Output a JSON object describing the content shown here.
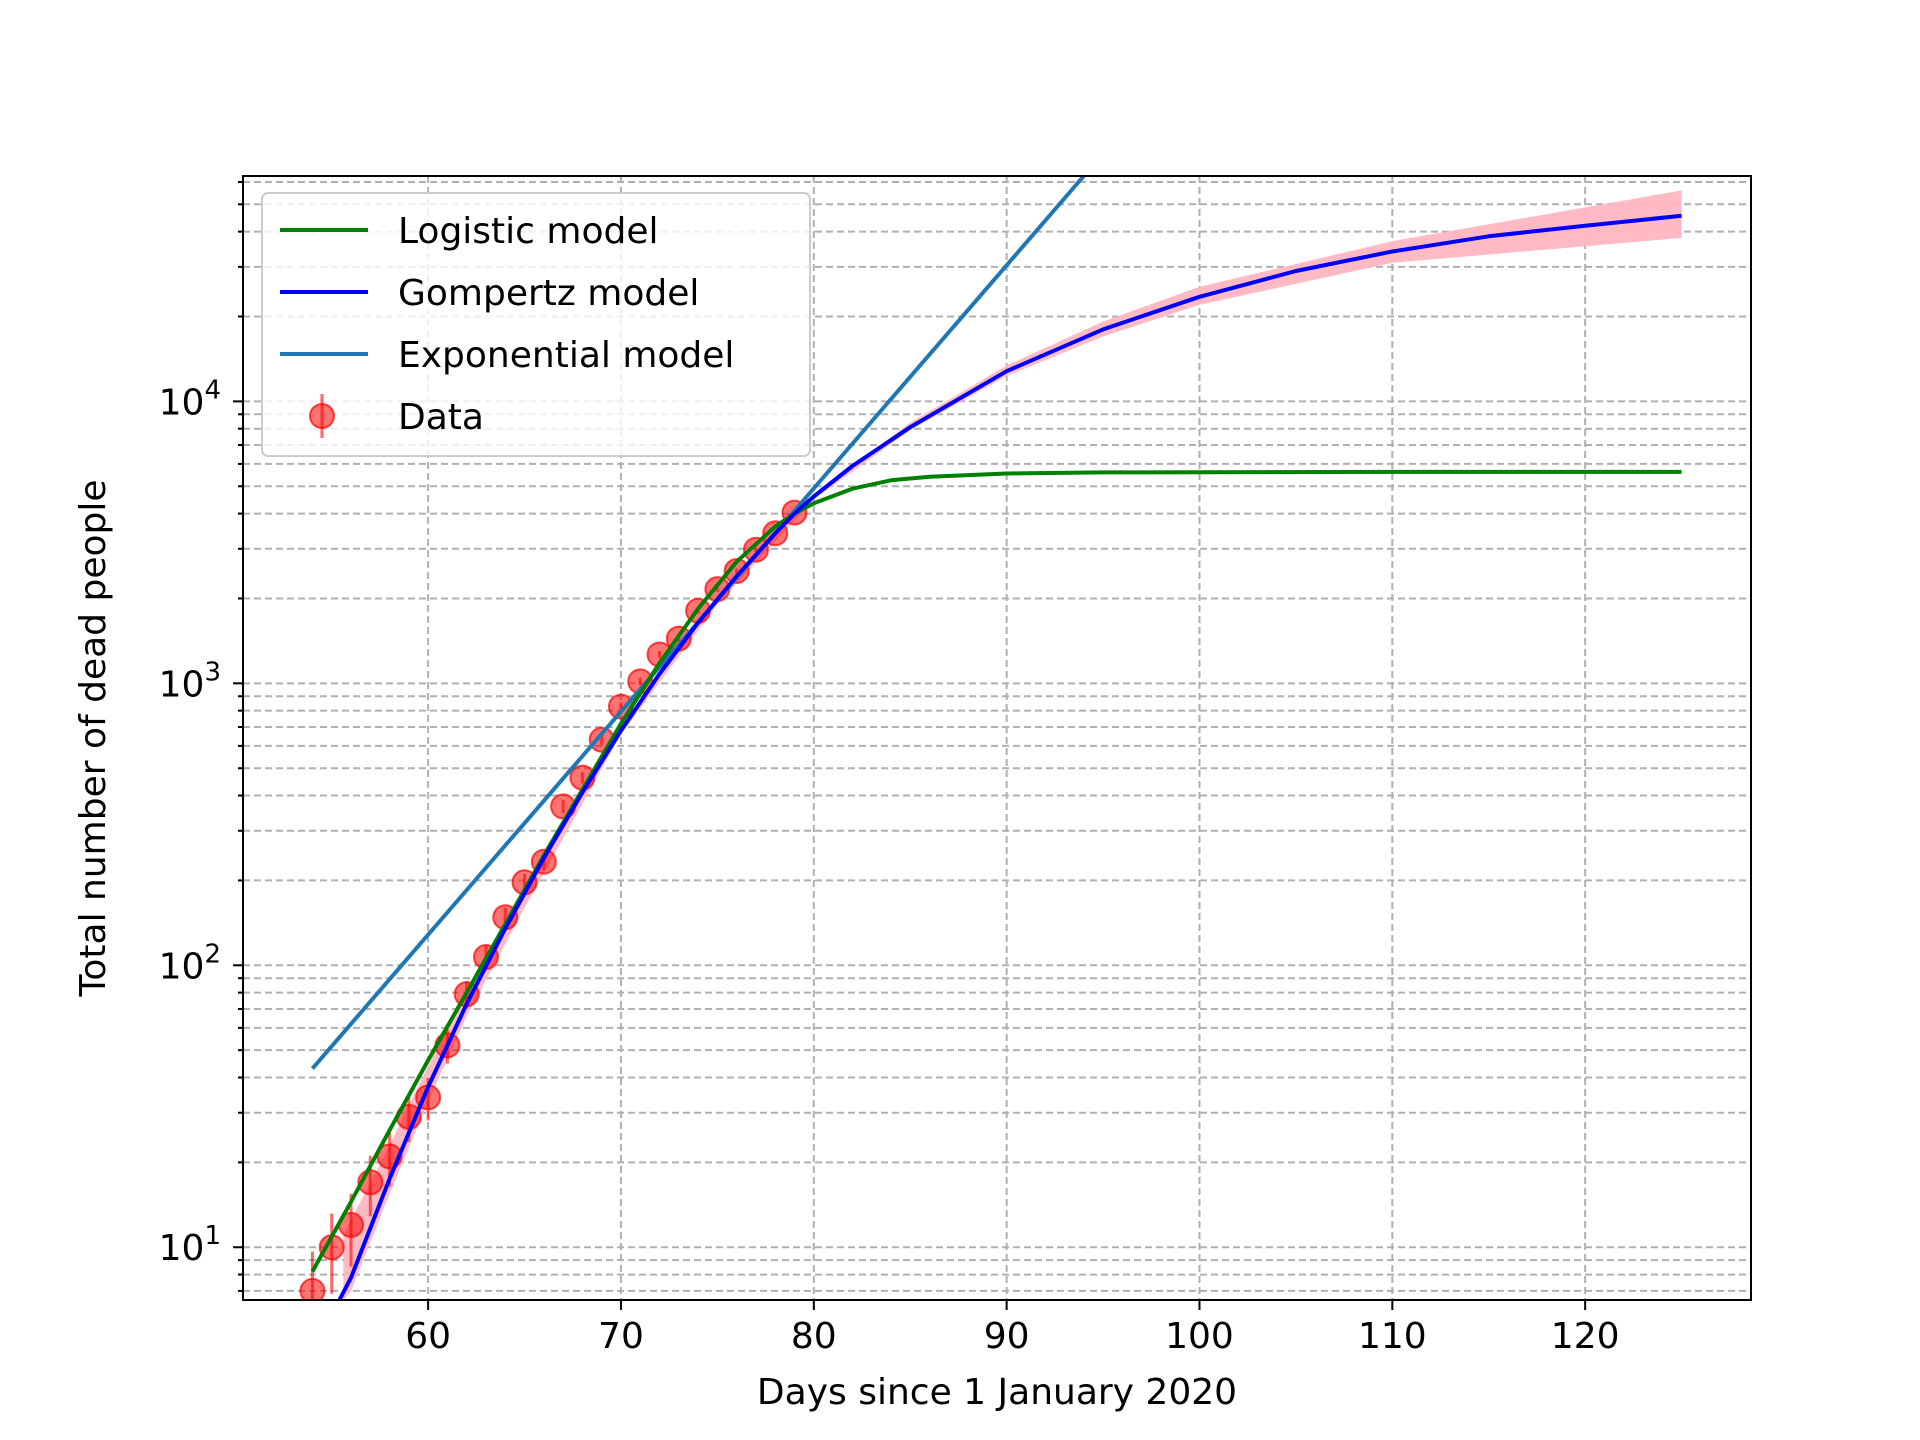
{
  "chart_data": {
    "type": "line",
    "title": "",
    "xlabel": "Days since 1 January 2020",
    "ylabel": "Total number of dead people",
    "xlim": [
      50.4,
      128.6
    ],
    "ylim": [
      6.5,
      63000
    ],
    "yscale": "log",
    "grid": "on, dashed, major and minor",
    "legend_placement": "top-left",
    "x_ticks": [
      60,
      70,
      80,
      90,
      100,
      110,
      120
    ],
    "y_ticks": [
      {
        "value": 10,
        "base": "10",
        "exp": "1"
      },
      {
        "value": 100,
        "base": "10",
        "exp": "2"
      },
      {
        "value": 1000,
        "base": "10",
        "exp": "3"
      },
      {
        "value": 10000,
        "base": "10",
        "exp": "4"
      }
    ],
    "colors": {
      "logistic": "#008000",
      "gompertz": "#0000ff",
      "exponential": "#1f77b4",
      "data": "#ff0000",
      "band": "#ffb6c1"
    },
    "series": [
      {
        "name": "Logistic model",
        "key": "logistic",
        "x": [
          54,
          56,
          58,
          60,
          62,
          64,
          66,
          68,
          70,
          72,
          74,
          76,
          78,
          79,
          80,
          82,
          84,
          86,
          90,
          95,
          100,
          110,
          125
        ],
        "y": [
          8.2,
          14.5,
          26,
          46,
          80,
          140,
          245,
          420,
          720,
          1180,
          1840,
          2700,
          3600,
          4000,
          4350,
          4900,
          5250,
          5400,
          5550,
          5600,
          5610,
          5620,
          5620
        ]
      },
      {
        "name": "Gompertz model",
        "key": "gompertz",
        "x": [
          55.4,
          56,
          58,
          60,
          62,
          64,
          66,
          68,
          70,
          72,
          74,
          76,
          78,
          79,
          80,
          82,
          85,
          90,
          95,
          100,
          105,
          110,
          115,
          120,
          125
        ],
        "y": [
          6.5,
          7.8,
          17.5,
          37,
          73,
          135,
          240,
          410,
          680,
          1080,
          1640,
          2400,
          3400,
          4000,
          4600,
          5900,
          8100,
          12800,
          18000,
          23500,
          29000,
          34000,
          38500,
          42000,
          45500
        ]
      },
      {
        "name": "Exponential model",
        "key": "exponential",
        "x": [
          54,
          94
        ],
        "y": [
          43,
          63000
        ]
      },
      {
        "name": "Data",
        "key": "data",
        "x": [
          54,
          55,
          56,
          57,
          58,
          59,
          60,
          61,
          62,
          63,
          64,
          65,
          66,
          67,
          68,
          69,
          70,
          71,
          72,
          73,
          74,
          75,
          76,
          77,
          78,
          79
        ],
        "y": [
          7,
          10,
          12,
          17,
          21,
          29,
          34,
          52,
          79,
          107,
          148,
          197,
          233,
          366,
          463,
          631,
          827,
          1016,
          1266,
          1441,
          1809,
          2158,
          2503,
          2978,
          3405,
          4032
        ]
      }
    ],
    "gompertz_band": {
      "x": [
        55.6,
        56,
        58,
        60,
        62,
        65,
        70,
        75,
        80,
        85,
        90,
        95,
        100,
        110,
        125
      ],
      "lower": [
        6.5,
        7.0,
        15.5,
        33,
        66,
        160,
        660,
        1900,
        4500,
        7900,
        12300,
        17000,
        22000,
        31000,
        38000
      ],
      "upper": [
        11.0,
        12.5,
        23,
        44,
        80,
        190,
        700,
        2050,
        4700,
        8400,
        13400,
        19200,
        25500,
        37000,
        56000
      ]
    }
  }
}
